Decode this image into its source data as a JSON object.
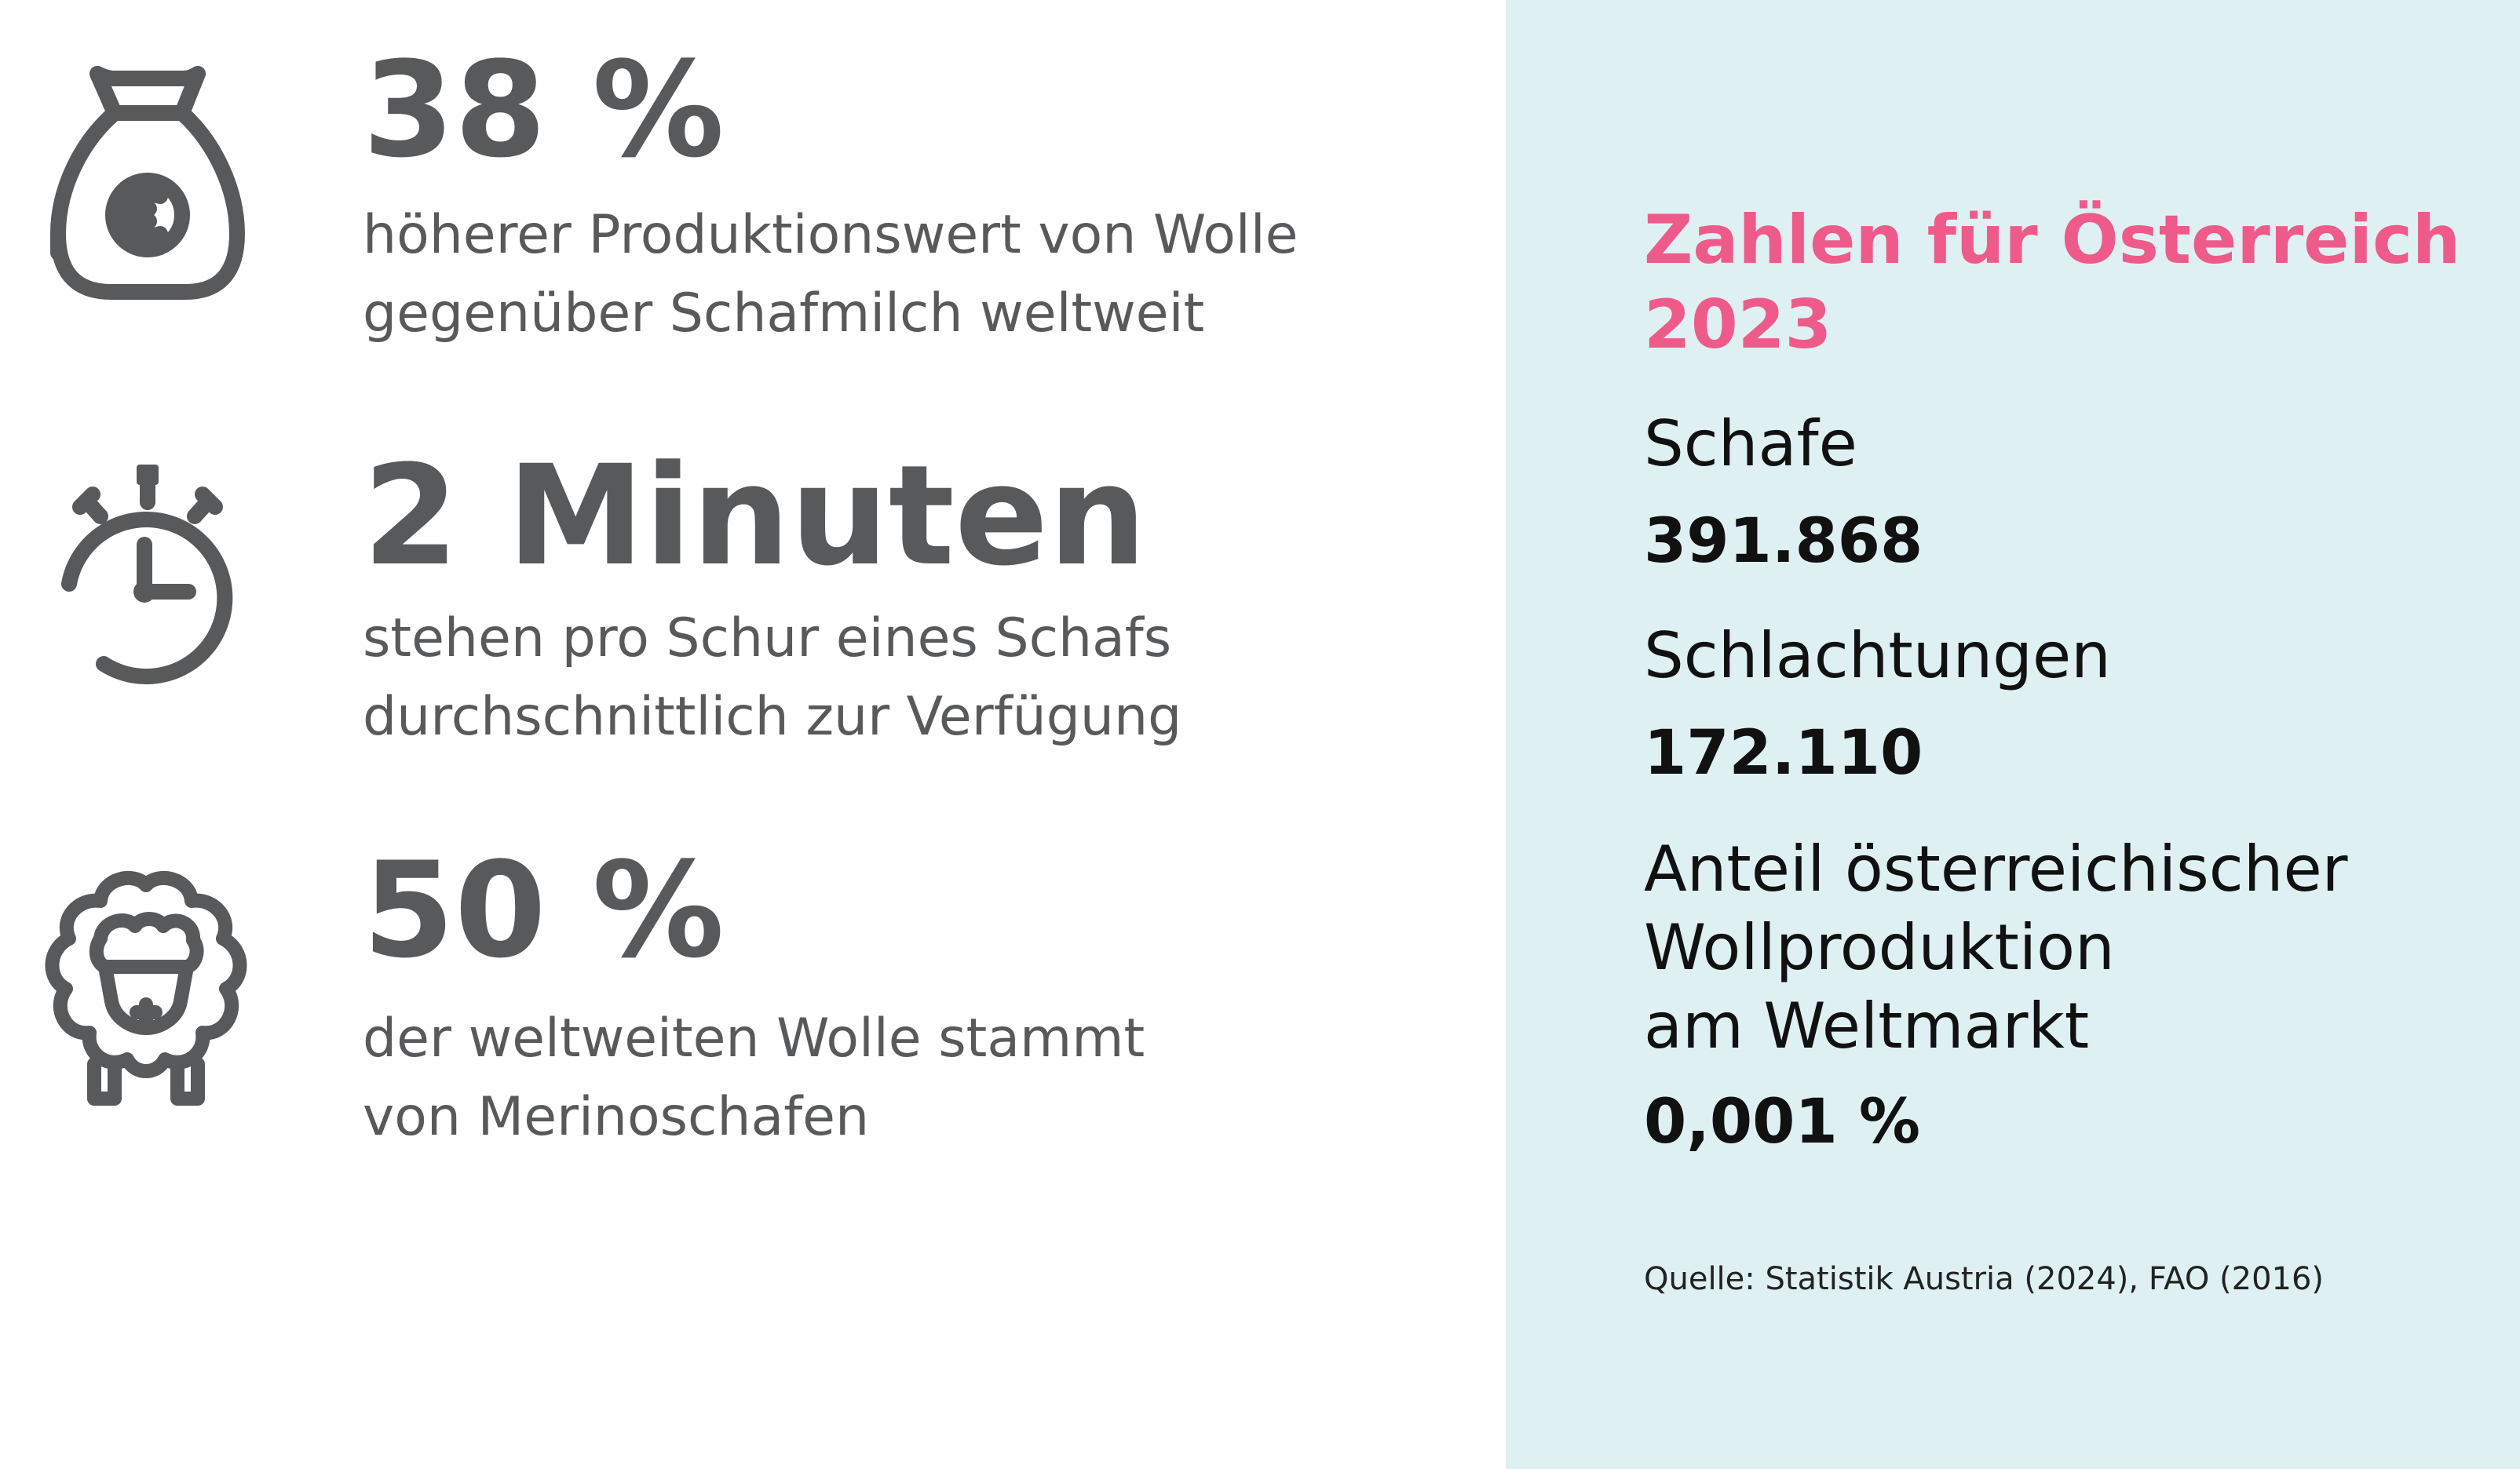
{
  "colors": {
    "icon_gray": "#58595b",
    "text_gray": "#58595b",
    "accent_pink": "#ee5b8a",
    "panel_bg": "#dff0f2",
    "dark_text": "#111111"
  },
  "stats": [
    {
      "icon": "money-bag-euro-icon",
      "value": "38 %",
      "description": [
        "höherer Produktionswert von Wolle",
        "gegenüber Schafmilch weltweit"
      ]
    },
    {
      "icon": "stopwatch-icon",
      "value": "2 Minuten",
      "description": [
        "stehen pro Schur eines Schafs",
        "durchschnittlich zur Verfügung"
      ]
    },
    {
      "icon": "sheep-icon",
      "value": "50 %",
      "description": [
        "der weltweiten Wolle stammt",
        "von Merinoschafen"
      ]
    }
  ],
  "austria": {
    "heading": [
      "Zahlen für Österreich",
      "2023"
    ],
    "facts": [
      {
        "label": [
          "Schafe"
        ],
        "value": "391.868"
      },
      {
        "label": [
          "Schlachtungen"
        ],
        "value": "172.110"
      },
      {
        "label": [
          "Anteil österreichischer",
          "Wollproduktion",
          "am Weltmarkt"
        ],
        "value": "0,001 %"
      }
    ],
    "source": "Quelle: Statistik Austria (2024), FAO (2016)"
  }
}
